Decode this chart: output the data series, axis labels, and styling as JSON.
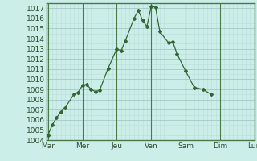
{
  "title": "",
  "x_labels": [
    "Mar",
    "Mer",
    "Jeu",
    "Ven",
    "Sam",
    "Dim",
    "Lun"
  ],
  "x_tick_positions": [
    0,
    1,
    2,
    3,
    4,
    5,
    6
  ],
  "y_values": [
    1004.5,
    1005.5,
    1006.2,
    1006.8,
    1007.2,
    1008.5,
    1008.7,
    1009.4,
    1009.5,
    1009.0,
    1008.8,
    1008.9,
    1011.1,
    1013.0,
    1012.8,
    1013.8,
    1016.0,
    1016.8,
    1015.8,
    1015.2,
    1017.2,
    1017.1,
    1014.7,
    1013.6,
    1013.7,
    1012.5,
    1010.8,
    1009.2,
    1009.0,
    1008.5
  ],
  "x_values": [
    0.0,
    0.125,
    0.25,
    0.375,
    0.5,
    0.75,
    0.875,
    1.0,
    1.125,
    1.25,
    1.375,
    1.5,
    1.75,
    2.0,
    2.125,
    2.25,
    2.5,
    2.625,
    2.75,
    2.875,
    3.0,
    3.125,
    3.25,
    3.5,
    3.625,
    3.75,
    4.0,
    4.25,
    4.5,
    4.75
  ],
  "ylim": [
    1004,
    1017.5
  ],
  "yticks": [
    1004,
    1005,
    1006,
    1007,
    1008,
    1009,
    1010,
    1011,
    1012,
    1013,
    1014,
    1015,
    1016,
    1017
  ],
  "line_color": "#336633",
  "marker_color": "#336633",
  "bg_color": "#cceee8",
  "grid_major_color": "#aacccc",
  "grid_minor_color": "#bbdddd",
  "axis_color": "#4a7a4a",
  "label_color": "#2d4a2d",
  "tick_label_fontsize": 6.5,
  "xlim": [
    -0.05,
    5.0
  ]
}
